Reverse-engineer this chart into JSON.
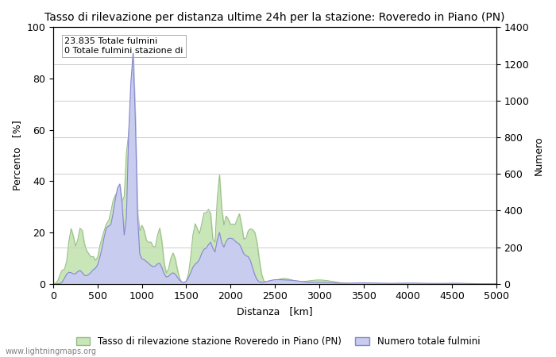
{
  "title": "Tasso di rilevazione per distanza ultime 24h per la stazione: Roveredo in Piano (PN)",
  "xlabel": "Distanza   [km]",
  "ylabel_left": "Percento   [%]",
  "ylabel_right": "Numero",
  "annotation_line1": "23.835 Totale fulmini",
  "annotation_line2": "0 Totale fulmini stazione di",
  "xlim": [
    0,
    5000
  ],
  "ylim_left": [
    0,
    100
  ],
  "ylim_right": [
    0,
    1400
  ],
  "xticks": [
    0,
    500,
    1000,
    1500,
    2000,
    2500,
    3000,
    3500,
    4000,
    4500,
    5000
  ],
  "yticks_left": [
    0,
    20,
    40,
    60,
    80,
    100
  ],
  "yticks_right": [
    0,
    200,
    400,
    600,
    800,
    1000,
    1200,
    1400
  ],
  "legend_label_green": "Tasso di rilevazione stazione Roveredo in Piano (PN)",
  "legend_label_blue": "Numero totale fulmini",
  "fill_green_color": "#c8e6b8",
  "fill_blue_color": "#c8ccee",
  "line_blue_color": "#8888cc",
  "line_green_color": "#99bb88",
  "watermark": "www.lightningmaps.org",
  "background_color": "#ffffff",
  "grid_color": "#cccccc",
  "title_fontsize": 10,
  "label_fontsize": 9,
  "tick_fontsize": 9
}
